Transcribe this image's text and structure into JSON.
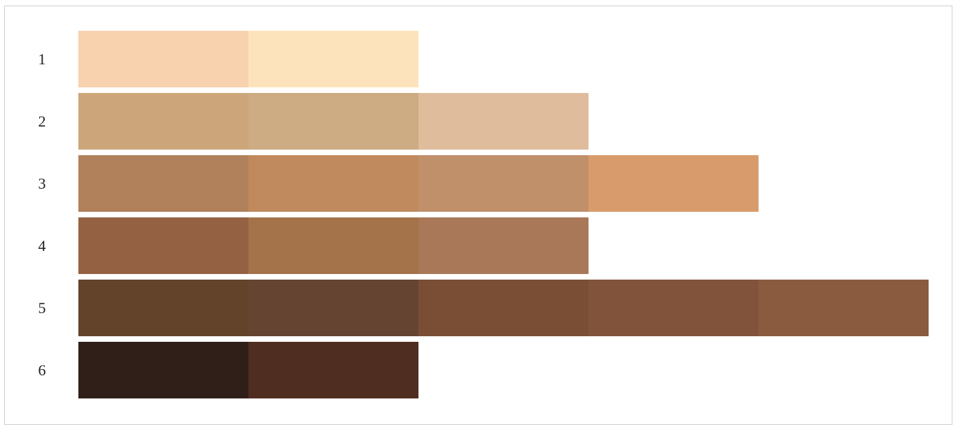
{
  "rows": [
    {
      "label": "1",
      "swatches": [
        "#f8d1af",
        "#fce3bb"
      ]
    },
    {
      "label": "2",
      "swatches": [
        "#cca57a",
        "#cdab83",
        "#dfbc9c"
      ]
    },
    {
      "label": "3",
      "swatches": [
        "#b0815a",
        "#c08a5e",
        "#c0906b",
        "#d89c6c"
      ]
    },
    {
      "label": "4",
      "swatches": [
        "#946243",
        "#a4734a",
        "#a87858"
      ]
    },
    {
      "label": "5",
      "swatches": [
        "#63442b",
        "#664432",
        "#7a4e35",
        "#82533b",
        "#8b5b3f"
      ]
    },
    {
      "label": "6",
      "swatches": [
        "#2f1f18",
        "#502d21"
      ]
    }
  ]
}
